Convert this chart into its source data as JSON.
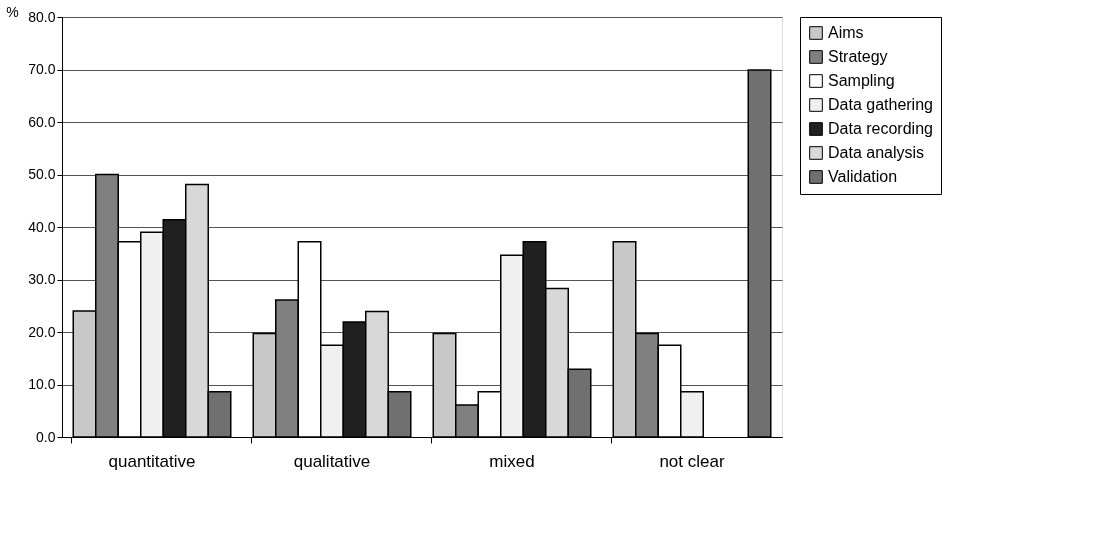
{
  "chart_data": {
    "type": "bar",
    "ylabel": "%",
    "categories": [
      "quantitative",
      "qualitative",
      "mixed",
      "not clear"
    ],
    "series": [
      {
        "name": "Aims",
        "color": "#c8c8c8",
        "values": [
          24.0,
          19.7,
          19.7,
          37.2
        ]
      },
      {
        "name": "Strategy",
        "color": "#808080",
        "values": [
          50.0,
          26.1,
          6.1,
          19.7
        ]
      },
      {
        "name": "Sampling",
        "color": "#ffffff",
        "values": [
          37.2,
          37.2,
          8.6,
          17.5
        ]
      },
      {
        "name": "Data gathering",
        "color": "#f0f0f0",
        "values": [
          39.0,
          17.5,
          34.6,
          8.6
        ]
      },
      {
        "name": "Data recording",
        "color": "#202020",
        "values": [
          41.4,
          21.9,
          37.2,
          null
        ]
      },
      {
        "name": "Data analysis",
        "color": "#d8d8d8",
        "values": [
          48.1,
          23.9,
          28.3,
          null
        ]
      },
      {
        "name": "Validation",
        "color": "#707070",
        "values": [
          8.6,
          8.6,
          12.9,
          69.9
        ]
      }
    ],
    "ylim": [
      0,
      80
    ],
    "yticks": [
      {
        "value": 0,
        "label": "0.0"
      },
      {
        "value": 10,
        "label": "10.0"
      },
      {
        "value": 20,
        "label": "20.0"
      },
      {
        "value": 30,
        "label": "30.0"
      },
      {
        "value": 40,
        "label": "40.0"
      },
      {
        "value": 50,
        "label": "50.0"
      },
      {
        "value": 60,
        "label": "60.0"
      },
      {
        "value": 70,
        "label": "70.0"
      },
      {
        "value": 80,
        "label": "80.0"
      }
    ],
    "grid": "y",
    "legend": "right"
  }
}
